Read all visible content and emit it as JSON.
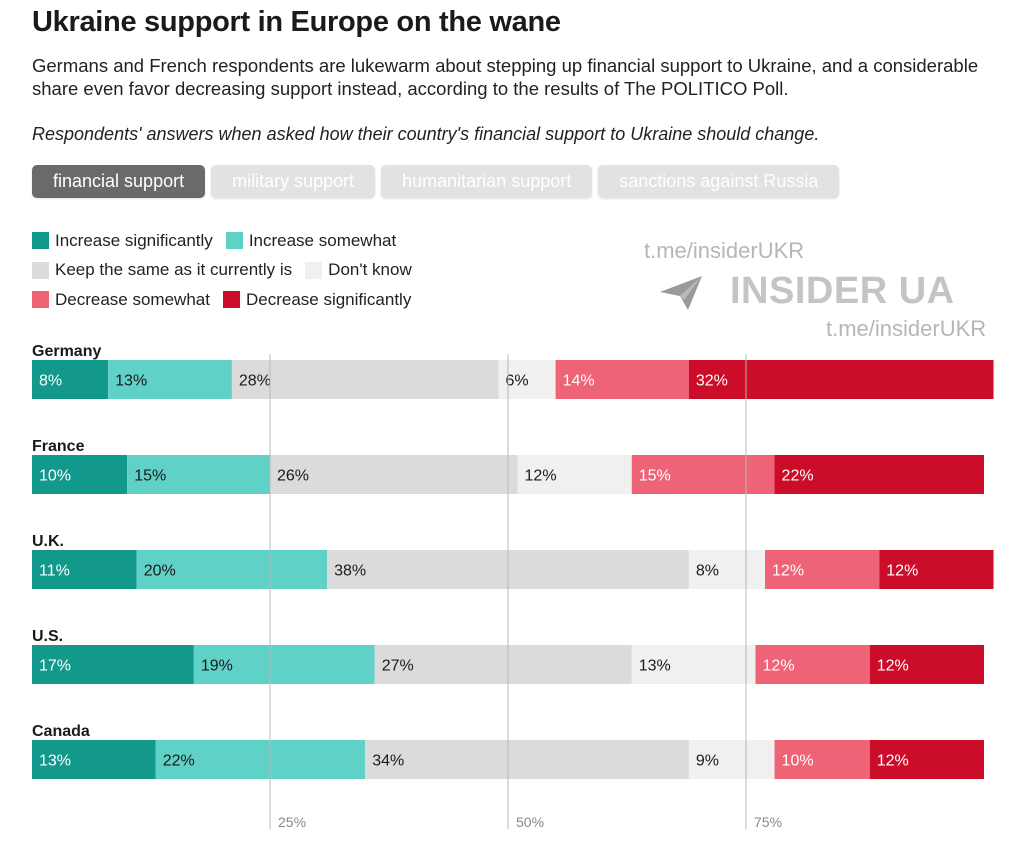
{
  "header": {
    "title": "Ukraine support in Europe on the wane",
    "subtitle": "Germans and French respondents are lukewarm about stepping up financial support to Ukraine, and a considerable share even favor decreasing support instead, according to the results of The POLITICO Poll.",
    "note": "Respondents' answers when asked how their country's financial support to Ukraine should change."
  },
  "tabs": [
    {
      "label": "financial support"
    },
    {
      "label": "military support"
    },
    {
      "label": "humanitarian support"
    },
    {
      "label": "sanctions against Russia"
    }
  ],
  "legend": [
    {
      "label": "Increase significantly",
      "color": "#13998c"
    },
    {
      "label": "Increase somewhat",
      "color": "#5fd1c7"
    },
    {
      "label": "Keep the same as it currently is",
      "color": "#dbdbdb"
    },
    {
      "label": "Don't know",
      "color": "#f0f0f0"
    },
    {
      "label": "Decrease somewhat",
      "color": "#ee6375"
    },
    {
      "label": "Decrease significantly",
      "color": "#cc0d2a"
    }
  ],
  "watermark": {
    "link_top": "t.me/insiderUKR",
    "brand": "INSIDER UA",
    "link_bottom": "t.me/insiderUKR"
  },
  "chart_data": {
    "type": "bar",
    "orientation": "horizontal",
    "stacked": true,
    "categories": [
      "Germany",
      "France",
      "U.K.",
      "U.S.",
      "Canada"
    ],
    "series": [
      {
        "name": "Increase significantly",
        "color": "#13998c",
        "values": [
          8,
          10,
          11,
          17,
          13
        ],
        "labels": [
          "8%",
          "10%",
          "11%",
          "17%",
          "13%"
        ]
      },
      {
        "name": "Increase somewhat",
        "color": "#5fd1c7",
        "values": [
          13,
          15,
          20,
          19,
          22
        ],
        "labels": [
          "13%",
          "15%",
          "20%",
          "19%",
          "22%"
        ]
      },
      {
        "name": "Keep the same as it currently is",
        "color": "#dbdbdb",
        "values": [
          28,
          26,
          38,
          27,
          34
        ],
        "labels": [
          "28%",
          "26%",
          "38%",
          "27%",
          "34%"
        ]
      },
      {
        "name": "Don't know",
        "color": "#f0f0f0",
        "values": [
          6,
          12,
          8,
          13,
          9
        ],
        "labels": [
          "6%",
          "12%",
          "8%",
          "13%",
          "9%"
        ]
      },
      {
        "name": "Decrease somewhat",
        "color": "#ee6375",
        "values": [
          14,
          15,
          12,
          12,
          10
        ],
        "labels": [
          "14%",
          "15%",
          "12%",
          "12%",
          "10%"
        ]
      },
      {
        "name": "Decrease significantly",
        "color": "#cc0d2a",
        "values": [
          32,
          22,
          12,
          12,
          12
        ],
        "labels": [
          "32%",
          "22%",
          "12%",
          "12%",
          "12%"
        ]
      }
    ],
    "xlim": [
      0,
      100
    ],
    "gridlines": [
      25,
      50,
      75
    ],
    "tick_labels": [
      "25%",
      "50%",
      "75%"
    ]
  }
}
